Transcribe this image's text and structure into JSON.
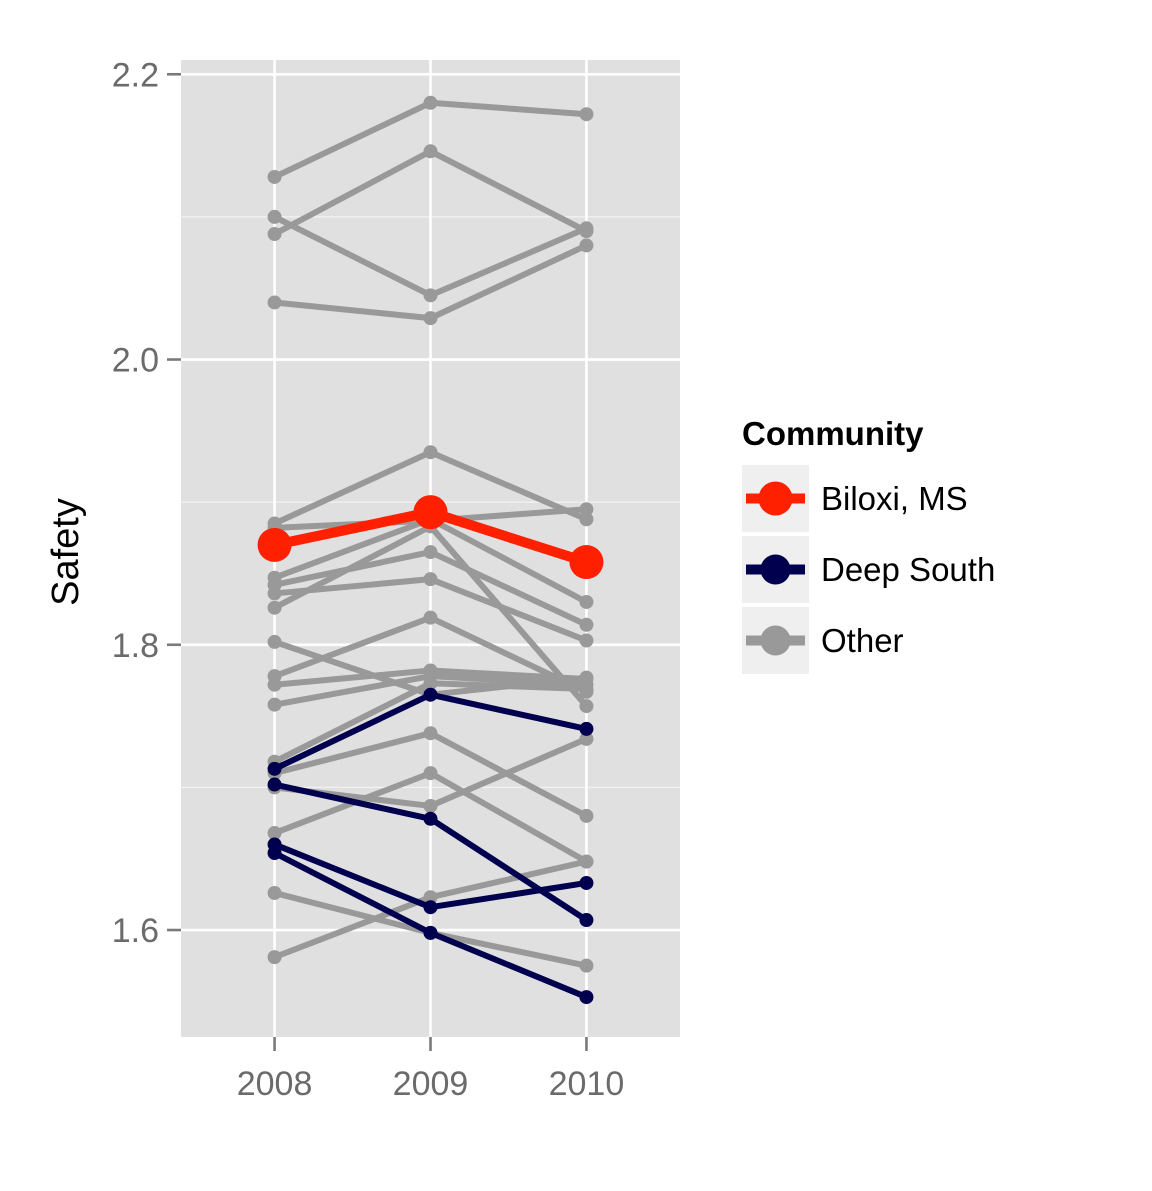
{
  "chart_data": {
    "type": "line",
    "title": "",
    "xlabel": "",
    "ylabel": "Safety",
    "x": [
      2008,
      2009,
      2010
    ],
    "x_tick_labels": [
      "2008",
      "2009",
      "2010"
    ],
    "xlim": [
      2007.4,
      2010.6
    ],
    "ylim": [
      1.525,
      2.21
    ],
    "y_ticks": [
      1.6,
      1.8,
      2.0,
      2.2
    ],
    "y_tick_labels": [
      "1.6",
      "1.8",
      "2.0",
      "2.2"
    ],
    "grid": true,
    "legend": {
      "title": "Community",
      "position": "right",
      "entries": [
        {
          "label": "Biloxi, MS",
          "color": "#ff2000"
        },
        {
          "label": "Deep South",
          "color": "#00004f"
        },
        {
          "label": "Other",
          "color": "#999999"
        }
      ]
    },
    "groups": {
      "Biloxi, MS": {
        "color": "#ff2000"
      },
      "Deep South": {
        "color": "#00004f"
      },
      "Other": {
        "color": "#999999"
      }
    },
    "series": [
      {
        "group": "Other",
        "values": [
          2.128,
          2.18,
          2.172
        ]
      },
      {
        "group": "Other",
        "values": [
          2.1,
          2.045,
          2.092
        ]
      },
      {
        "group": "Other",
        "values": [
          2.088,
          2.146,
          2.09
        ]
      },
      {
        "group": "Other",
        "values": [
          2.04,
          2.029,
          2.08
        ]
      },
      {
        "group": "Other",
        "values": [
          1.885,
          1.935,
          1.888
        ]
      },
      {
        "group": "Other",
        "values": [
          1.882,
          1.887,
          1.895
        ]
      },
      {
        "group": "Other",
        "values": [
          1.847,
          1.888,
          1.83
        ]
      },
      {
        "group": "Other",
        "values": [
          1.842,
          1.865,
          1.814
        ]
      },
      {
        "group": "Other",
        "values": [
          1.836,
          1.846,
          1.803
        ]
      },
      {
        "group": "Other",
        "values": [
          1.826,
          1.883,
          1.757
        ]
      },
      {
        "group": "Other",
        "values": [
          1.778,
          1.819,
          1.767
        ]
      },
      {
        "group": "Other",
        "values": [
          1.802,
          1.765,
          1.777
        ]
      },
      {
        "group": "Other",
        "values": [
          1.772,
          1.782,
          1.776
        ]
      },
      {
        "group": "Other",
        "values": [
          1.758,
          1.778,
          1.772
        ]
      },
      {
        "group": "Other",
        "values": [
          1.718,
          1.773,
          1.769
        ]
      },
      {
        "group": "Other",
        "values": [
          1.71,
          1.738,
          1.68
        ]
      },
      {
        "group": "Other",
        "values": [
          1.668,
          1.71,
          1.648
        ]
      },
      {
        "group": "Other",
        "values": [
          1.7,
          1.687,
          1.734
        ]
      },
      {
        "group": "Other",
        "values": [
          1.626,
          1.598,
          1.575
        ]
      },
      {
        "group": "Other",
        "values": [
          1.581,
          1.623,
          1.648
        ]
      },
      {
        "group": "Deep South",
        "values": [
          1.713,
          1.765,
          1.741
        ]
      },
      {
        "group": "Deep South",
        "values": [
          1.702,
          1.678,
          1.607
        ]
      },
      {
        "group": "Deep South",
        "values": [
          1.66,
          1.616,
          1.633
        ]
      },
      {
        "group": "Deep South",
        "values": [
          1.654,
          1.598,
          1.553
        ]
      },
      {
        "group": "Biloxi, MS",
        "values": [
          1.87,
          1.893,
          1.858
        ]
      }
    ]
  }
}
